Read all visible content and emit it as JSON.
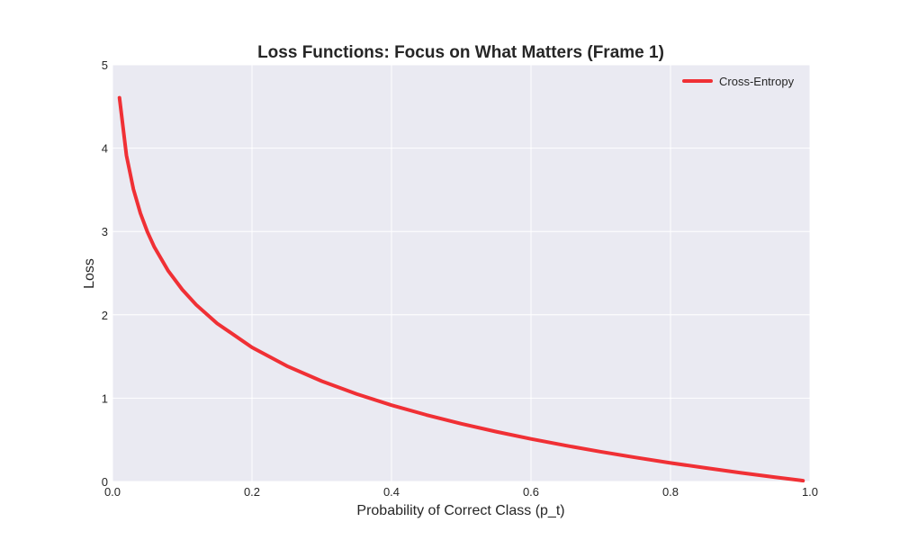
{
  "chart_data": {
    "type": "line",
    "title": "Loss Functions: Focus on What Matters (Frame 1)",
    "xlabel": "Probability of Correct Class (p_t)",
    "ylabel": "Loss",
    "xlim": [
      0,
      1
    ],
    "ylim": [
      0,
      5
    ],
    "xticks": [
      "0.0",
      "0.2",
      "0.4",
      "0.6",
      "0.8",
      "1.0"
    ],
    "yticks": [
      "0",
      "1",
      "2",
      "3",
      "4",
      "5"
    ],
    "grid": true,
    "legend_position": "top-right",
    "background_color": "#eaeaf2",
    "series": [
      {
        "name": "Cross-Entropy",
        "color": "#f03035",
        "x": [
          0.01,
          0.02,
          0.03,
          0.04,
          0.05,
          0.06,
          0.08,
          0.1,
          0.12,
          0.15,
          0.2,
          0.25,
          0.3,
          0.35,
          0.4,
          0.45,
          0.5,
          0.55,
          0.6,
          0.65,
          0.7,
          0.75,
          0.8,
          0.85,
          0.9,
          0.95,
          0.99
        ],
        "y": [
          4.605,
          3.912,
          3.507,
          3.219,
          2.996,
          2.813,
          2.526,
          2.303,
          2.12,
          1.897,
          1.609,
          1.386,
          1.204,
          1.05,
          0.916,
          0.799,
          0.693,
          0.598,
          0.511,
          0.431,
          0.357,
          0.288,
          0.223,
          0.163,
          0.105,
          0.051,
          0.01
        ]
      }
    ]
  }
}
